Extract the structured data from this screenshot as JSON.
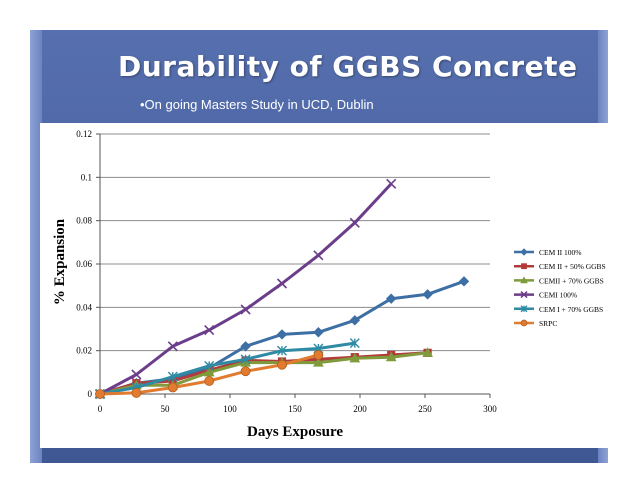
{
  "slide": {
    "title": "Durability of GGBS Concrete",
    "subtitle": "•On going Masters Study in UCD, Dublin"
  },
  "chart_data": {
    "type": "line",
    "title": "",
    "xlabel": "Days Exposure",
    "ylabel": "% Expansion",
    "xlim": [
      0,
      300
    ],
    "ylim": [
      0,
      0.12
    ],
    "x_ticks": [
      "0",
      "50",
      "100",
      "150",
      "200",
      "250",
      "300"
    ],
    "y_ticks": [
      "0",
      "0.02",
      "0.04",
      "0.06",
      "0.08",
      "0.1",
      "0.12"
    ],
    "grid": "horizontal",
    "legend_position": "right",
    "series": [
      {
        "name": "CEM II 100%",
        "color": "#3d6fa5",
        "marker": "diamond",
        "points": [
          [
            0,
            0
          ],
          [
            28,
            0.005
          ],
          [
            56,
            0.007
          ],
          [
            84,
            0.012
          ],
          [
            112,
            0.022
          ],
          [
            140,
            0.0275
          ],
          [
            168,
            0.0285
          ],
          [
            196,
            0.034
          ],
          [
            224,
            0.044
          ],
          [
            252,
            0.046
          ],
          [
            280,
            0.052
          ]
        ]
      },
      {
        "name": "CEM II + 50% GGBS",
        "color": "#b23b3b",
        "marker": "square",
        "points": [
          [
            0,
            0
          ],
          [
            28,
            0.005
          ],
          [
            56,
            0.006
          ],
          [
            84,
            0.011
          ],
          [
            112,
            0.0155
          ],
          [
            140,
            0.015
          ],
          [
            168,
            0.016
          ],
          [
            196,
            0.017
          ],
          [
            224,
            0.018
          ],
          [
            252,
            0.019
          ]
        ]
      },
      {
        "name": "CEMII + 70% GGBS",
        "color": "#7f9b3b",
        "marker": "triangle",
        "points": [
          [
            0,
            0
          ],
          [
            28,
            0.004
          ],
          [
            56,
            0.004
          ],
          [
            84,
            0.01
          ],
          [
            112,
            0.0145
          ],
          [
            140,
            0.0145
          ],
          [
            168,
            0.0145
          ],
          [
            196,
            0.0165
          ],
          [
            224,
            0.017
          ],
          [
            252,
            0.019
          ]
        ]
      },
      {
        "name": "CEMI 100%",
        "color": "#6b3d8a",
        "marker": "x",
        "points": [
          [
            0,
            0
          ],
          [
            28,
            0.009
          ],
          [
            56,
            0.022
          ],
          [
            84,
            0.0295
          ],
          [
            112,
            0.039
          ],
          [
            140,
            0.051
          ],
          [
            168,
            0.064
          ],
          [
            196,
            0.079
          ],
          [
            224,
            0.097
          ]
        ]
      },
      {
        "name": "CEM I + 70% GGBS",
        "color": "#2f8aa3",
        "marker": "star",
        "points": [
          [
            0,
            0
          ],
          [
            28,
            0.003
          ],
          [
            56,
            0.008
          ],
          [
            84,
            0.013
          ],
          [
            112,
            0.016
          ],
          [
            140,
            0.02
          ],
          [
            168,
            0.021
          ],
          [
            196,
            0.0235
          ]
        ]
      },
      {
        "name": "SRPC",
        "color": "#e07b2f",
        "marker": "circle",
        "points": [
          [
            0,
            0
          ],
          [
            28,
            0.0005
          ],
          [
            56,
            0.003
          ],
          [
            84,
            0.006
          ],
          [
            112,
            0.0105
          ],
          [
            140,
            0.0135
          ],
          [
            168,
            0.018
          ]
        ]
      }
    ]
  }
}
